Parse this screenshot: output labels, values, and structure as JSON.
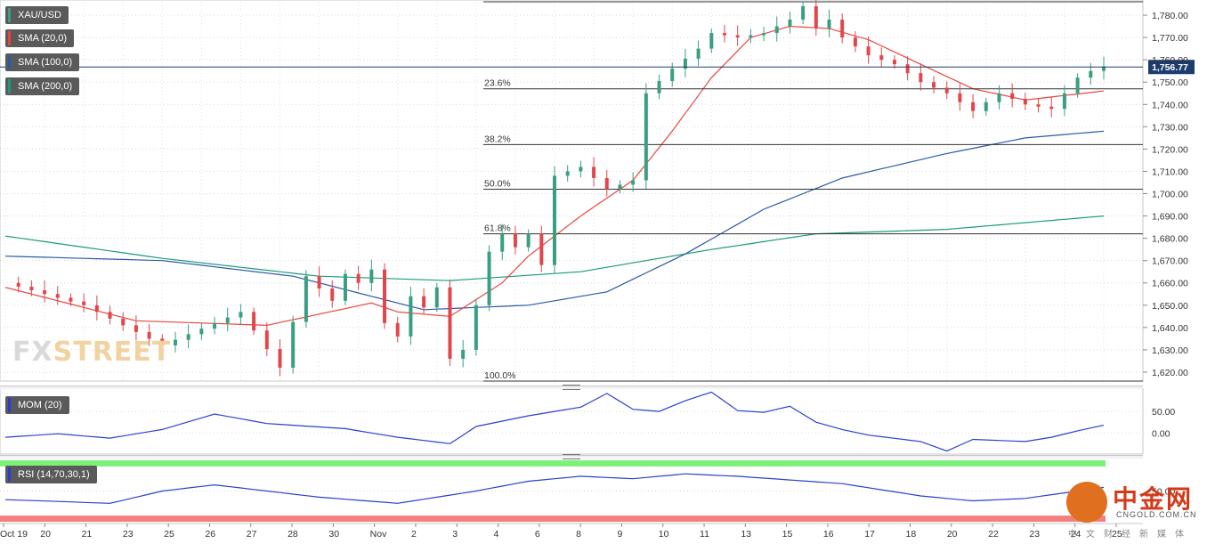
{
  "symbol": "XAU/USD",
  "indicators": {
    "sma20": "SMA (20,0)",
    "sma100": "SMA (100,0)",
    "sma200": "SMA (200,0)",
    "mom": "MOM (20)",
    "rsi": "RSI (14,70,30,1)"
  },
  "colors": {
    "up": "#3a9e82",
    "down": "#e0474c",
    "sma20": "#e8463c",
    "sma100": "#2a59a8",
    "sma200": "#1a9a7c",
    "mom": "#2a3fd0",
    "rsi_overbought": "#7df07a",
    "rsi_oversold": "#f57f7f",
    "price_tag": "#1c3b6e"
  },
  "watermark": {
    "part1": "FX",
    "part2": "STREET"
  },
  "logo": {
    "cn": "中金网",
    "en": "CNGOLD.COM.CN",
    "sub": "中文财经新媒体"
  },
  "chart_data": {
    "type": "candlestick",
    "price_axis": {
      "ticks": [
        "1,780.00",
        "1,770.00",
        "1,760.00",
        "1,750.00",
        "1,740.00",
        "1,730.00",
        "1,720.00",
        "1,710.00",
        "1,700.00",
        "1,690.00",
        "1,680.00",
        "1,670.00",
        "1,660.00",
        "1,650.00",
        "1,640.00",
        "1,630.00",
        "1,620.00"
      ],
      "range": [
        1616,
        1786
      ]
    },
    "x_axis_labels": [
      "Oct 19",
      "20",
      "21",
      "23",
      "25",
      "26",
      "27",
      "28",
      "30",
      "Nov",
      "2",
      "3",
      "4",
      "6",
      "8",
      "9",
      "10",
      "11",
      "13",
      "15",
      "16",
      "17",
      "18",
      "20",
      "22",
      "23",
      "24",
      "25"
    ],
    "last_price": "1,756.77",
    "last_price_value": 1756.77,
    "fibonacci": {
      "levels": [
        {
          "label": "23.6%",
          "price": 1747
        },
        {
          "label": "38.2%",
          "price": 1722
        },
        {
          "label": "50.0%",
          "price": 1702
        },
        {
          "label": "61.8%",
          "price": 1682
        },
        {
          "label": "100.0%",
          "price": 1616
        }
      ],
      "high": 1786
    },
    "price_path": [
      [
        0,
        1660
      ],
      [
        6,
        1650
      ],
      [
        12,
        1632
      ],
      [
        18,
        1647
      ],
      [
        21,
        1622
      ],
      [
        23,
        1663
      ],
      [
        25,
        1652
      ],
      [
        26,
        1664
      ],
      [
        27,
        1660
      ],
      [
        28,
        1666
      ],
      [
        29,
        1642
      ],
      [
        30,
        1636
      ],
      [
        31,
        1654
      ],
      [
        32,
        1649
      ],
      [
        33,
        1658
      ],
      [
        34,
        1626
      ],
      [
        35,
        1630
      ],
      [
        36,
        1650
      ],
      [
        37,
        1674
      ],
      [
        38,
        1682
      ],
      [
        39,
        1676
      ],
      [
        40,
        1682
      ],
      [
        41,
        1668
      ],
      [
        42,
        1708
      ],
      [
        44,
        1712
      ],
      [
        46,
        1702
      ],
      [
        48,
        1706
      ],
      [
        49,
        1745
      ],
      [
        51,
        1756
      ],
      [
        53,
        1765
      ],
      [
        54,
        1772
      ],
      [
        56,
        1770
      ],
      [
        58,
        1772
      ],
      [
        60,
        1778
      ],
      [
        61,
        1784
      ],
      [
        62,
        1774
      ],
      [
        63,
        1778
      ],
      [
        64,
        1770
      ],
      [
        66,
        1762
      ],
      [
        68,
        1758
      ],
      [
        70,
        1750
      ],
      [
        72,
        1745
      ],
      [
        74,
        1737
      ],
      [
        76,
        1745
      ],
      [
        78,
        1740
      ],
      [
        80,
        1738
      ],
      [
        81,
        1745
      ],
      [
        82,
        1752
      ],
      [
        83,
        1755
      ],
      [
        84,
        1757
      ]
    ],
    "sma20": [
      [
        0,
        1658
      ],
      [
        10,
        1643
      ],
      [
        20,
        1641
      ],
      [
        28,
        1651
      ],
      [
        30,
        1647
      ],
      [
        34,
        1645
      ],
      [
        38,
        1660
      ],
      [
        40,
        1672
      ],
      [
        44,
        1690
      ],
      [
        48,
        1706
      ],
      [
        51,
        1728
      ],
      [
        54,
        1752
      ],
      [
        57,
        1770
      ],
      [
        60,
        1775
      ],
      [
        63,
        1774
      ],
      [
        66,
        1769
      ],
      [
        70,
        1758
      ],
      [
        74,
        1747
      ],
      [
        78,
        1742
      ],
      [
        81,
        1744
      ],
      [
        84,
        1746
      ]
    ],
    "sma100": [
      [
        0,
        1672
      ],
      [
        12,
        1670
      ],
      [
        22,
        1663
      ],
      [
        32,
        1648
      ],
      [
        40,
        1650
      ],
      [
        46,
        1656
      ],
      [
        52,
        1673
      ],
      [
        58,
        1693
      ],
      [
        64,
        1707
      ],
      [
        72,
        1718
      ],
      [
        78,
        1725
      ],
      [
        84,
        1728
      ]
    ],
    "sma200": [
      [
        0,
        1681
      ],
      [
        12,
        1671
      ],
      [
        24,
        1663
      ],
      [
        34,
        1661
      ],
      [
        44,
        1665
      ],
      [
        54,
        1675
      ],
      [
        62,
        1682
      ],
      [
        72,
        1684
      ],
      [
        78,
        1687
      ],
      [
        84,
        1690
      ]
    ],
    "mom": {
      "ticks": [
        "50.00",
        "0.00"
      ],
      "range": [
        -45,
        100
      ],
      "values": [
        [
          0,
          -10
        ],
        [
          4,
          -2
        ],
        [
          8,
          -12
        ],
        [
          12,
          8
        ],
        [
          16,
          44
        ],
        [
          20,
          22
        ],
        [
          26,
          10
        ],
        [
          30,
          -10
        ],
        [
          34,
          -25
        ],
        [
          36,
          15
        ],
        [
          40,
          40
        ],
        [
          44,
          60
        ],
        [
          46,
          92
        ],
        [
          48,
          55
        ],
        [
          50,
          50
        ],
        [
          52,
          75
        ],
        [
          54,
          95
        ],
        [
          56,
          52
        ],
        [
          58,
          48
        ],
        [
          60,
          62
        ],
        [
          62,
          25
        ],
        [
          64,
          8
        ],
        [
          66,
          -5
        ],
        [
          70,
          -20
        ],
        [
          72,
          -42
        ],
        [
          74,
          -15
        ],
        [
          78,
          -20
        ],
        [
          80,
          -10
        ],
        [
          82,
          5
        ],
        [
          84,
          18
        ]
      ]
    },
    "rsi": {
      "ticks": [
        "50.00"
      ],
      "range": [
        25,
        75
      ],
      "overbought": 70,
      "oversold": 30,
      "values": [
        [
          0,
          43
        ],
        [
          8,
          40
        ],
        [
          12,
          50
        ],
        [
          16,
          55
        ],
        [
          24,
          45
        ],
        [
          30,
          40
        ],
        [
          36,
          50
        ],
        [
          40,
          58
        ],
        [
          44,
          62
        ],
        [
          48,
          60
        ],
        [
          52,
          64
        ],
        [
          56,
          62
        ],
        [
          60,
          59
        ],
        [
          64,
          56
        ],
        [
          70,
          46
        ],
        [
          74,
          42
        ],
        [
          78,
          44
        ],
        [
          82,
          50
        ],
        [
          84,
          53
        ]
      ]
    }
  }
}
